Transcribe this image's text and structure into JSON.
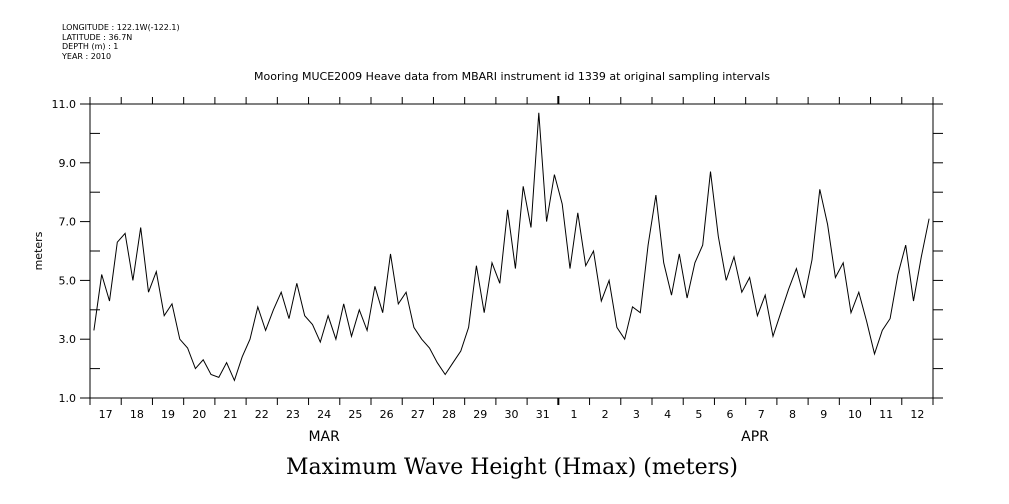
{
  "chart_data": {
    "type": "line",
    "title": "Mooring MUCE2009 Heave data from MBARI instrument id 1339 at original sampling intervals",
    "metadata_lines": [
      "LONGITUDE : 122.1W(-122.1)",
      "LATITUDE : 36.7N",
      "DEPTH (m) : 1",
      "YEAR : 2010"
    ],
    "xlabel": "Maximum Wave Height (Hmax) (meters)",
    "ylabel": "meters",
    "ylim": [
      1.0,
      11.0
    ],
    "yticks": [
      "1.0",
      "3.0",
      "5.0",
      "7.0",
      "9.0",
      "11.0"
    ],
    "ytick_values": [
      1,
      3,
      5,
      7,
      9,
      11
    ],
    "xlim_days": [
      0,
      27
    ],
    "day_labels": [
      "17",
      "18",
      "19",
      "20",
      "21",
      "22",
      "23",
      "24",
      "25",
      "26",
      "27",
      "28",
      "29",
      "30",
      "31",
      "1",
      "2",
      "3",
      "4",
      "5",
      "6",
      "7",
      "8",
      "9",
      "10",
      "11",
      "12"
    ],
    "month_labels": [
      {
        "label": "MAR",
        "day": 7.5
      },
      {
        "label": "APR",
        "day": 21.3
      }
    ],
    "samples_per_day": 4,
    "series": [
      {
        "name": "Hmax",
        "values": [
          3.3,
          5.2,
          4.3,
          6.3,
          6.6,
          5.0,
          6.8,
          4.6,
          5.3,
          3.8,
          4.2,
          3.0,
          2.7,
          2.0,
          2.3,
          1.8,
          1.7,
          2.2,
          1.6,
          2.4,
          3.0,
          4.1,
          3.3,
          4.0,
          4.6,
          3.7,
          4.9,
          3.8,
          3.5,
          2.9,
          3.8,
          3.0,
          4.2,
          3.1,
          4.0,
          3.3,
          4.8,
          3.9,
          5.9,
          4.2,
          4.6,
          3.4,
          3.0,
          2.7,
          2.2,
          1.8,
          2.2,
          2.6,
          3.4,
          5.5,
          3.9,
          5.6,
          4.9,
          7.4,
          5.4,
          8.2,
          6.8,
          10.7,
          7.0,
          8.6,
          7.6,
          5.4,
          7.3,
          5.5,
          6.0,
          4.3,
          5.0,
          3.4,
          3.0,
          4.1,
          3.9,
          6.2,
          7.9,
          5.6,
          4.5,
          5.9,
          4.4,
          5.6,
          6.2,
          8.7,
          6.5,
          5.0,
          5.8,
          4.6,
          5.1,
          3.8,
          4.5,
          3.1,
          3.9,
          4.7,
          5.4,
          4.4,
          5.7,
          8.1,
          6.9,
          5.1,
          5.6,
          3.9,
          4.6,
          3.6,
          2.5,
          3.3,
          3.7,
          5.2,
          6.2,
          4.3,
          5.8,
          7.1
        ]
      }
    ],
    "grid": false,
    "line_color": "#000000"
  }
}
